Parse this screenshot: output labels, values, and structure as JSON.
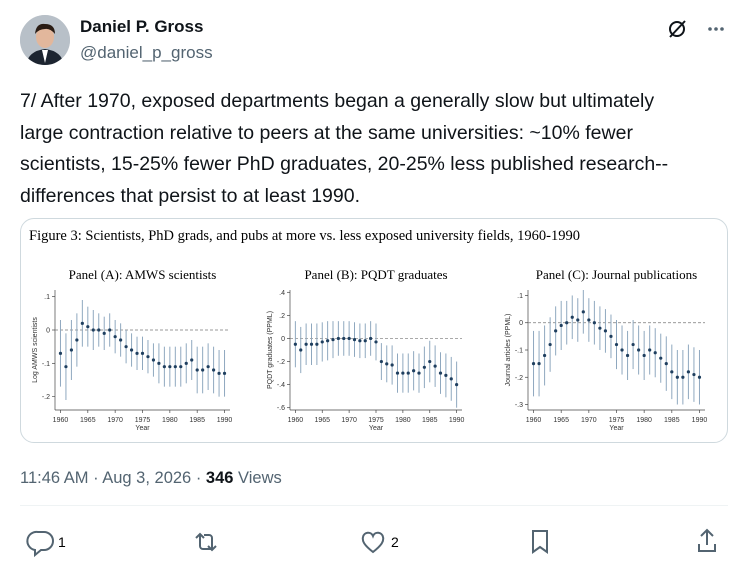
{
  "tweet": {
    "name": "Daniel P. Gross",
    "handle": "@daniel_p_gross",
    "text_lines": [
      "7/ After 1970, exposed departments began a generally slow but ultimately",
      "large contraction relative to peers at the same universities: ~10% fewer",
      "scientists, 15-25% fewer PhD graduates, 20-25% less published research--",
      "differences that persist to at least 1990."
    ],
    "timestamp": "11:46 AM · Aug 3, 2026 · ",
    "views": "346",
    "views_label": " Views",
    "replies": "1",
    "likes": "2"
  },
  "figure_title": "Figure 3: Scientists, PhD grads, and pubs at more vs. less exposed university fields, 1960-1990",
  "chart_data": [
    {
      "type": "scatter",
      "title": "Panel (A): AMWS scientists",
      "ylabel": "Log AMWS scientists",
      "xlabel": "Year",
      "x": [
        1960,
        1961,
        1962,
        1963,
        1964,
        1965,
        1966,
        1967,
        1968,
        1969,
        1970,
        1971,
        1972,
        1973,
        1974,
        1975,
        1976,
        1977,
        1978,
        1979,
        1980,
        1981,
        1982,
        1983,
        1984,
        1985,
        1986,
        1987,
        1988,
        1989,
        1990
      ],
      "values": [
        -0.07,
        -0.11,
        -0.06,
        -0.03,
        0.02,
        0.01,
        0,
        0,
        -0.01,
        0,
        -0.02,
        -0.03,
        -0.05,
        -0.06,
        -0.07,
        -0.07,
        -0.08,
        -0.09,
        -0.1,
        -0.11,
        -0.11,
        -0.11,
        -0.11,
        -0.1,
        -0.09,
        -0.12,
        -0.12,
        -0.11,
        -0.12,
        -0.13,
        -0.13
      ],
      "errors": [
        0.1,
        0.1,
        0.09,
        0.08,
        0.07,
        0.06,
        0.06,
        0.05,
        0.05,
        0.05,
        0.05,
        0.05,
        0.05,
        0.05,
        0.05,
        0.05,
        0.05,
        0.05,
        0.06,
        0.06,
        0.06,
        0.06,
        0.06,
        0.06,
        0.06,
        0.07,
        0.07,
        0.07,
        0.07,
        0.07,
        0.07
      ],
      "color": "#1f3f5f",
      "xlim": [
        1959,
        1991
      ],
      "ylim": [
        -0.24,
        0.12
      ],
      "xticks": [
        1960,
        1965,
        1970,
        1975,
        1980,
        1985,
        1990
      ],
      "yticks": [
        {
          "value": 0.1,
          "label": ".1"
        },
        0,
        {
          "value": -0.1,
          "label": "-.1"
        },
        {
          "value": -0.2,
          "label": "-.2"
        }
      ]
    },
    {
      "type": "scatter",
      "title": "Panel (B): PQDT graduates",
      "ylabel": "PQDT graduates (PPML)",
      "xlabel": "Year",
      "x": [
        1960,
        1961,
        1962,
        1963,
        1964,
        1965,
        1966,
        1967,
        1968,
        1969,
        1970,
        1971,
        1972,
        1973,
        1974,
        1975,
        1976,
        1977,
        1978,
        1979,
        1980,
        1981,
        1982,
        1983,
        1984,
        1985,
        1986,
        1987,
        1988,
        1989,
        1990
      ],
      "values": [
        -0.05,
        -0.1,
        -0.05,
        -0.05,
        -0.05,
        -0.03,
        -0.02,
        -0.01,
        0,
        0,
        0,
        -0.01,
        -0.02,
        -0.02,
        0,
        -0.03,
        -0.2,
        -0.22,
        -0.23,
        -0.3,
        -0.3,
        -0.3,
        -0.28,
        -0.3,
        -0.25,
        -0.2,
        -0.24,
        -0.3,
        -0.32,
        -0.35,
        -0.4
      ],
      "errors": [
        0.2,
        0.2,
        0.18,
        0.18,
        0.18,
        0.17,
        0.17,
        0.16,
        0.15,
        0.15,
        0.15,
        0.15,
        0.15,
        0.15,
        0.15,
        0.16,
        0.16,
        0.16,
        0.17,
        0.17,
        0.17,
        0.17,
        0.17,
        0.17,
        0.18,
        0.18,
        0.18,
        0.18,
        0.19,
        0.19,
        0.2
      ],
      "color": "#1f3f5f",
      "xlim": [
        1959,
        1991
      ],
      "ylim": [
        -0.62,
        0.42
      ],
      "xticks": [
        1960,
        1965,
        1970,
        1975,
        1980,
        1985,
        1990
      ],
      "yticks": [
        {
          "value": 0.4,
          "label": ".4"
        },
        {
          "value": 0.2,
          "label": ".2"
        },
        0,
        {
          "value": -0.2,
          "label": "-.2"
        },
        {
          "value": -0.4,
          "label": "-.4"
        },
        {
          "value": -0.6,
          "label": "-.6"
        }
      ]
    },
    {
      "type": "scatter",
      "title": "Panel (C): Journal publications",
      "ylabel": "Journal articles (PPML)",
      "xlabel": "Year",
      "x": [
        1960,
        1961,
        1962,
        1963,
        1964,
        1965,
        1966,
        1967,
        1968,
        1969,
        1970,
        1971,
        1972,
        1973,
        1974,
        1975,
        1976,
        1977,
        1978,
        1979,
        1980,
        1981,
        1982,
        1983,
        1984,
        1985,
        1986,
        1987,
        1988,
        1989,
        1990
      ],
      "values": [
        -0.15,
        -0.15,
        -0.12,
        -0.08,
        -0.03,
        -0.01,
        0,
        0.02,
        0.01,
        0.04,
        0.01,
        0,
        -0.02,
        -0.03,
        -0.05,
        -0.08,
        -0.1,
        -0.12,
        -0.08,
        -0.1,
        -0.12,
        -0.1,
        -0.11,
        -0.13,
        -0.15,
        -0.18,
        -0.2,
        -0.2,
        -0.18,
        -0.19,
        -0.2
      ],
      "errors": [
        0.12,
        0.12,
        0.11,
        0.1,
        0.09,
        0.09,
        0.08,
        0.08,
        0.08,
        0.08,
        0.08,
        0.08,
        0.08,
        0.08,
        0.08,
        0.09,
        0.09,
        0.09,
        0.09,
        0.09,
        0.09,
        0.09,
        0.09,
        0.09,
        0.1,
        0.1,
        0.1,
        0.1,
        0.1,
        0.1,
        0.1
      ],
      "color": "#1f3f5f",
      "xlim": [
        1959,
        1991
      ],
      "ylim": [
        -0.32,
        0.12
      ],
      "xticks": [
        1960,
        1965,
        1970,
        1975,
        1980,
        1985,
        1990
      ],
      "yticks": [
        {
          "value": 0.1,
          "label": ".1"
        },
        0,
        {
          "value": -0.1,
          "label": "-.1"
        },
        {
          "value": -0.2,
          "label": "-.2"
        },
        {
          "value": -0.3,
          "label": "-.3"
        }
      ]
    }
  ]
}
